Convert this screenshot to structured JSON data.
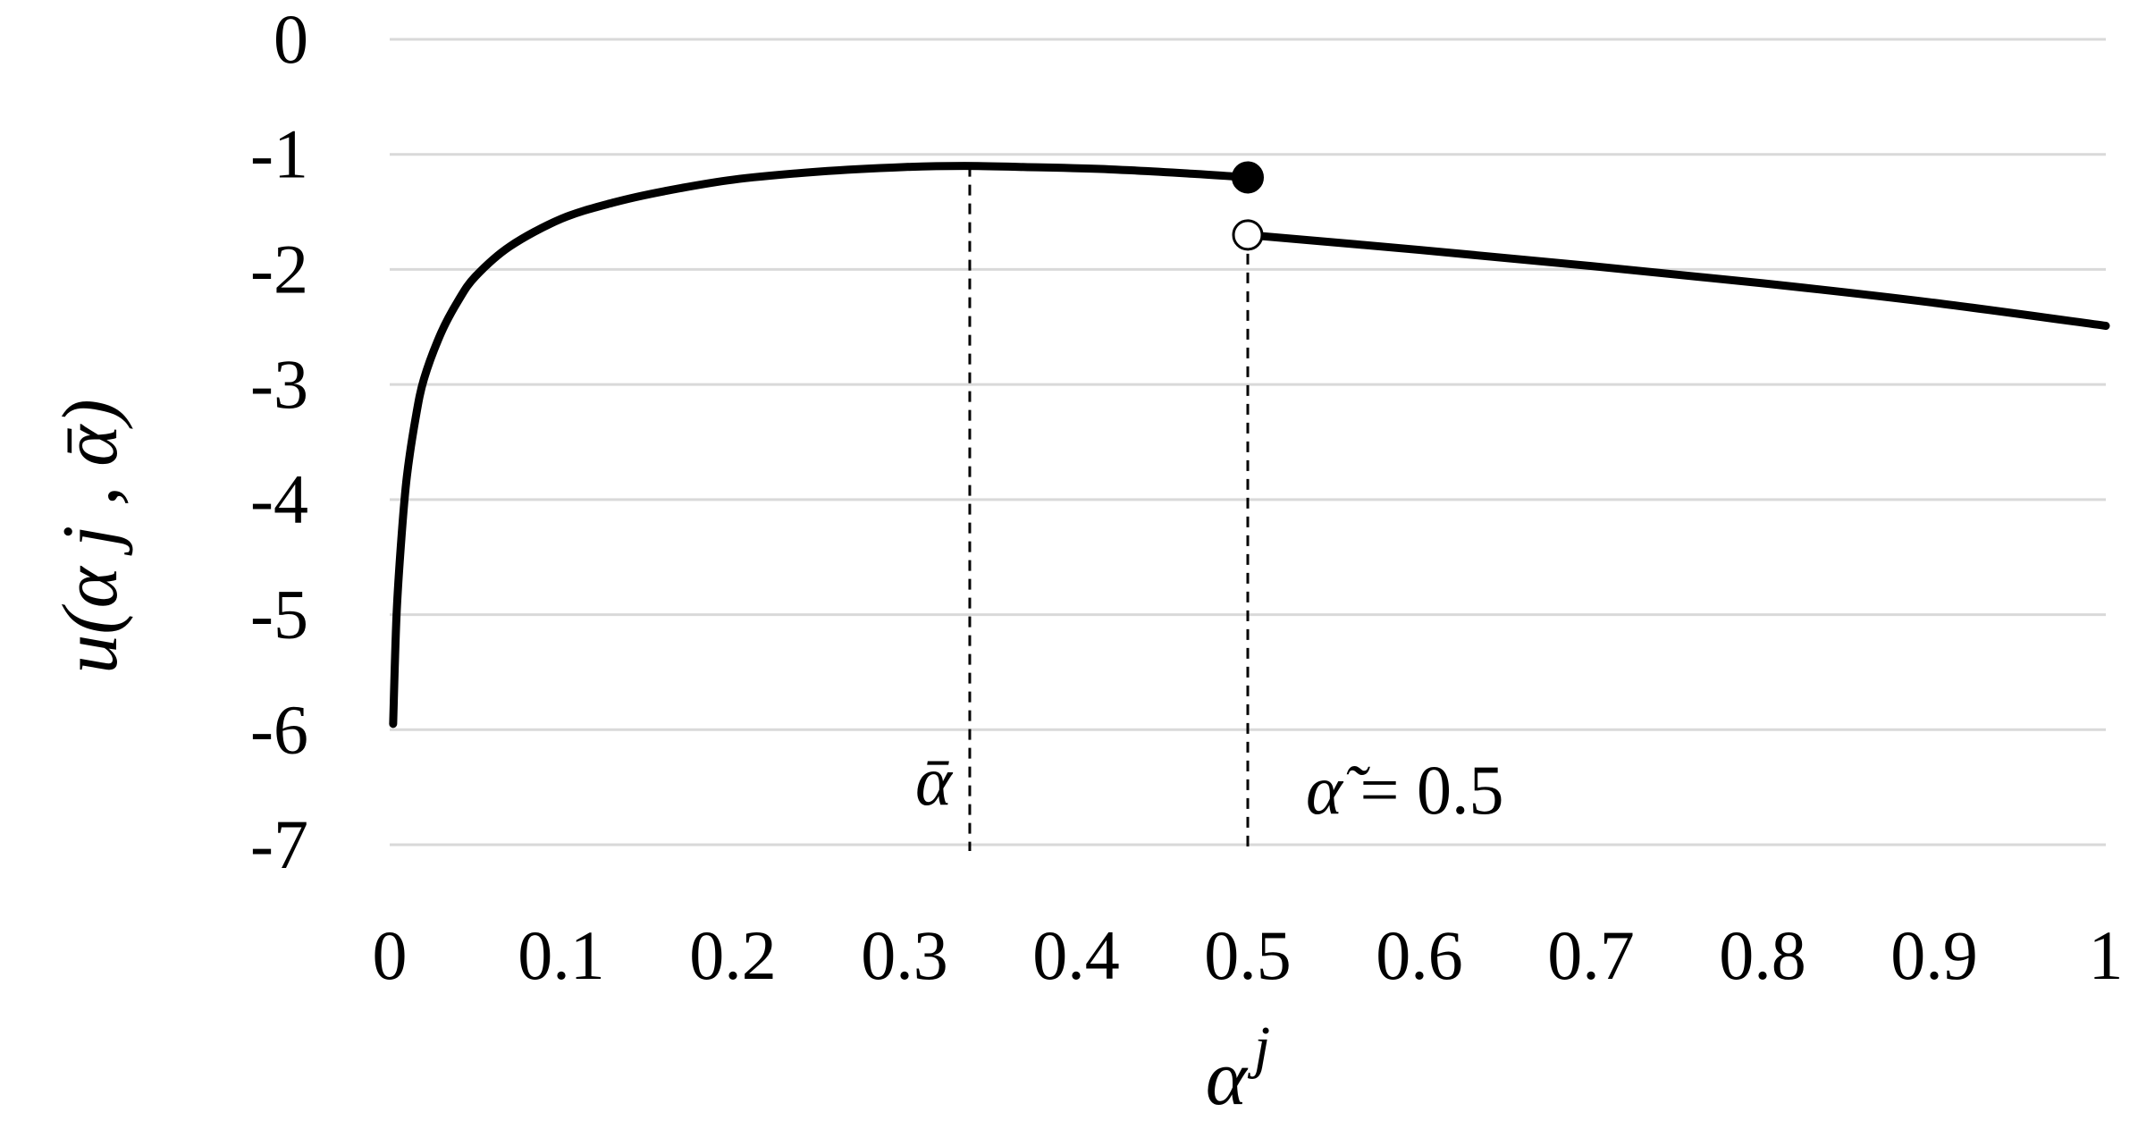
{
  "chart_data": {
    "type": "line",
    "xlabel_base": "α",
    "xlabel_sup": "j",
    "ylabel": "u(α j , ᾱ)",
    "xlim": [
      0,
      1
    ],
    "ylim": [
      -7,
      0
    ],
    "x_ticks": [
      "0",
      "0.1",
      "0.2",
      "0.3",
      "0.4",
      "0.5",
      "0.6",
      "0.7",
      "0.8",
      "0.9",
      "1"
    ],
    "y_ticks": [
      "0",
      "-1",
      "-2",
      "-3",
      "-4",
      "-5",
      "-6",
      "-7"
    ],
    "grid": true,
    "series": [
      {
        "segment": "left",
        "x": [
          0.002,
          0.004,
          0.007,
          0.01,
          0.015,
          0.02,
          0.03,
          0.04,
          0.05,
          0.07,
          0.1,
          0.13,
          0.16,
          0.2,
          0.25,
          0.3,
          0.335,
          0.37,
          0.42,
          0.47,
          0.5
        ],
        "y": [
          -5.95,
          -5.0,
          -4.3,
          -3.8,
          -3.3,
          -2.95,
          -2.55,
          -2.27,
          -2.06,
          -1.8,
          -1.56,
          -1.42,
          -1.32,
          -1.22,
          -1.15,
          -1.11,
          -1.1,
          -1.11,
          -1.13,
          -1.17,
          -1.2
        ]
      },
      {
        "segment": "right",
        "x": [
          0.5,
          0.6,
          0.7,
          0.8,
          0.9,
          1.0
        ],
        "y": [
          -1.7,
          -1.83,
          -1.97,
          -2.12,
          -2.29,
          -2.49
        ]
      }
    ],
    "points": [
      {
        "x": 0.5,
        "y": -1.2,
        "filled": true
      },
      {
        "x": 0.5,
        "y": -1.7,
        "filled": false
      }
    ],
    "reference_lines": [
      {
        "x": 0.338,
        "label": "ᾱ"
      },
      {
        "x": 0.5,
        "label_symbol": "α̃",
        "label_value": " = 0.5"
      }
    ]
  }
}
